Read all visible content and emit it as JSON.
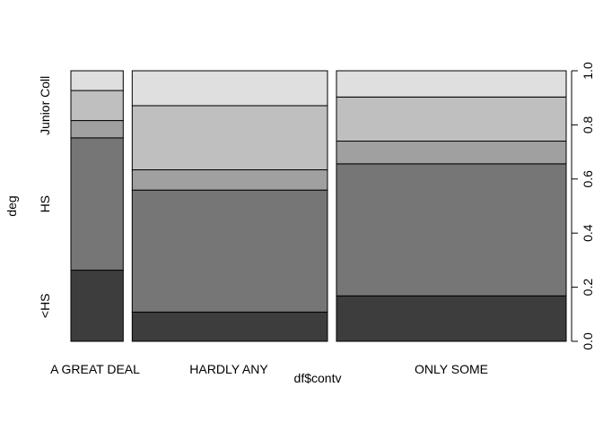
{
  "chart_data": {
    "type": "mosaic",
    "xlabel": "df$contv",
    "ylabel": "deg",
    "categories": [
      "A GREAT DEAL",
      "HARDLY ANY",
      "ONLY SOME"
    ],
    "column_widths": [
      0.205,
      0.765,
      0.9
    ],
    "levels": [
      "<HS",
      "HS",
      "",
      "Junior Coll",
      ""
    ],
    "level_colors": [
      "#3d3d3d",
      "#767676",
      "#a0a0a0",
      "#bfbfbf",
      "#dfdfdf"
    ],
    "cumulative": [
      [
        0.263,
        0.752,
        0.816,
        0.927,
        1.0
      ],
      [
        0.108,
        0.559,
        0.634,
        0.871,
        1.0
      ],
      [
        0.168,
        0.656,
        0.74,
        0.903,
        1.0
      ]
    ],
    "ylim": [
      0,
      1
    ],
    "yticks": [
      "0.0",
      "0.2",
      "0.4",
      "0.6",
      "0.8",
      "1.0"
    ],
    "grid": false,
    "legend": "none"
  }
}
